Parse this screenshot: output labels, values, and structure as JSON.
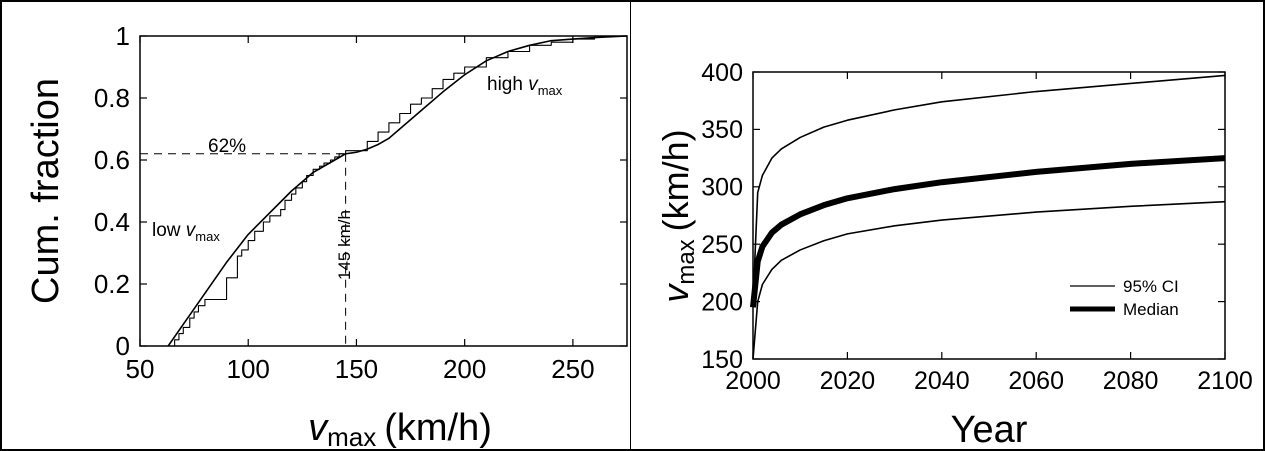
{
  "chart_data": [
    {
      "type": "line",
      "xlabel_symbol": "v",
      "xlabel_subscript": "max",
      "xlabel_unit": "(km/h)",
      "ylabel": "Cum. fraction",
      "xlim": [
        50,
        275
      ],
      "ylim": [
        0,
        1
      ],
      "x_ticks": [
        "50",
        "100",
        "150",
        "200",
        "250"
      ],
      "y_ticks": [
        "0",
        "0.2",
        "0.4",
        "0.6",
        "0.8",
        "1"
      ],
      "grid": false,
      "annotations": {
        "percent_label": "62%",
        "speed_label": "145 km/h",
        "low_prefix": "low ",
        "high_prefix": "high ",
        "v": "v",
        "max": "max"
      },
      "threshold": {
        "x": 145,
        "y": 0.62
      },
      "series": [
        {
          "style": "smooth",
          "x": [
            63,
            70,
            80,
            90,
            100,
            110,
            120,
            130,
            140,
            145,
            150,
            155,
            160,
            165,
            170,
            180,
            190,
            200,
            210,
            220,
            230,
            240,
            250,
            260,
            275
          ],
          "y": [
            0,
            0.07,
            0.17,
            0.27,
            0.36,
            0.43,
            0.5,
            0.56,
            0.6,
            0.62,
            0.625,
            0.635,
            0.65,
            0.67,
            0.7,
            0.76,
            0.82,
            0.875,
            0.92,
            0.95,
            0.97,
            0.985,
            0.99,
            0.995,
            1.0
          ]
        },
        {
          "style": "step",
          "x": [
            63,
            66,
            68,
            70,
            73,
            75,
            77,
            80,
            90,
            95,
            97,
            100,
            103,
            107,
            110,
            115,
            117,
            120,
            122,
            125,
            127,
            130,
            133,
            135,
            138,
            140,
            142,
            145,
            155,
            160,
            165,
            170,
            175,
            180,
            185,
            190,
            195,
            200,
            210,
            220,
            230,
            240,
            250,
            260
          ],
          "y": [
            0,
            0.02,
            0.04,
            0.06,
            0.09,
            0.11,
            0.13,
            0.15,
            0.22,
            0.29,
            0.31,
            0.34,
            0.37,
            0.4,
            0.42,
            0.44,
            0.47,
            0.49,
            0.51,
            0.53,
            0.55,
            0.57,
            0.58,
            0.59,
            0.6,
            0.61,
            0.62,
            0.63,
            0.66,
            0.69,
            0.72,
            0.75,
            0.78,
            0.8,
            0.83,
            0.86,
            0.88,
            0.9,
            0.93,
            0.95,
            0.97,
            0.98,
            0.99,
            1.0
          ]
        }
      ]
    },
    {
      "type": "line",
      "xlabel": "Year",
      "ylabel_symbol": "v",
      "ylabel_subscript": "max",
      "ylabel_unit": "(km/h)",
      "xlim": [
        2000,
        2100
      ],
      "ylim": [
        150,
        400
      ],
      "x_ticks": [
        "2000",
        "2020",
        "2040",
        "2060",
        "2080",
        "2100"
      ],
      "y_ticks": [
        "150",
        "200",
        "250",
        "300",
        "350",
        "400"
      ],
      "grid": false,
      "legend_position": "bottom-right",
      "legend": [
        {
          "label": "95% CI",
          "style": "thin"
        },
        {
          "label": "Median",
          "style": "thick"
        }
      ],
      "series": [
        {
          "style": "thin",
          "x": [
            2000,
            2001,
            2002,
            2004,
            2006,
            2010,
            2015,
            2020,
            2030,
            2040,
            2060,
            2080,
            2100
          ],
          "y": [
            150,
            200,
            215,
            228,
            236,
            245,
            253,
            259,
            266,
            271,
            278,
            283,
            287
          ]
        },
        {
          "style": "thin",
          "x": [
            2000,
            2001,
            2002,
            2004,
            2006,
            2010,
            2015,
            2020,
            2030,
            2040,
            2060,
            2080,
            2100
          ],
          "y": [
            200,
            295,
            310,
            325,
            333,
            343,
            352,
            358,
            367,
            374,
            383,
            390,
            397
          ]
        },
        {
          "style": "thick",
          "x": [
            2000,
            2001,
            2002,
            2004,
            2006,
            2010,
            2015,
            2020,
            2030,
            2040,
            2060,
            2080,
            2100
          ],
          "y": [
            195,
            235,
            248,
            260,
            267,
            276,
            284,
            290,
            298,
            304,
            313,
            320,
            325
          ]
        }
      ]
    }
  ]
}
